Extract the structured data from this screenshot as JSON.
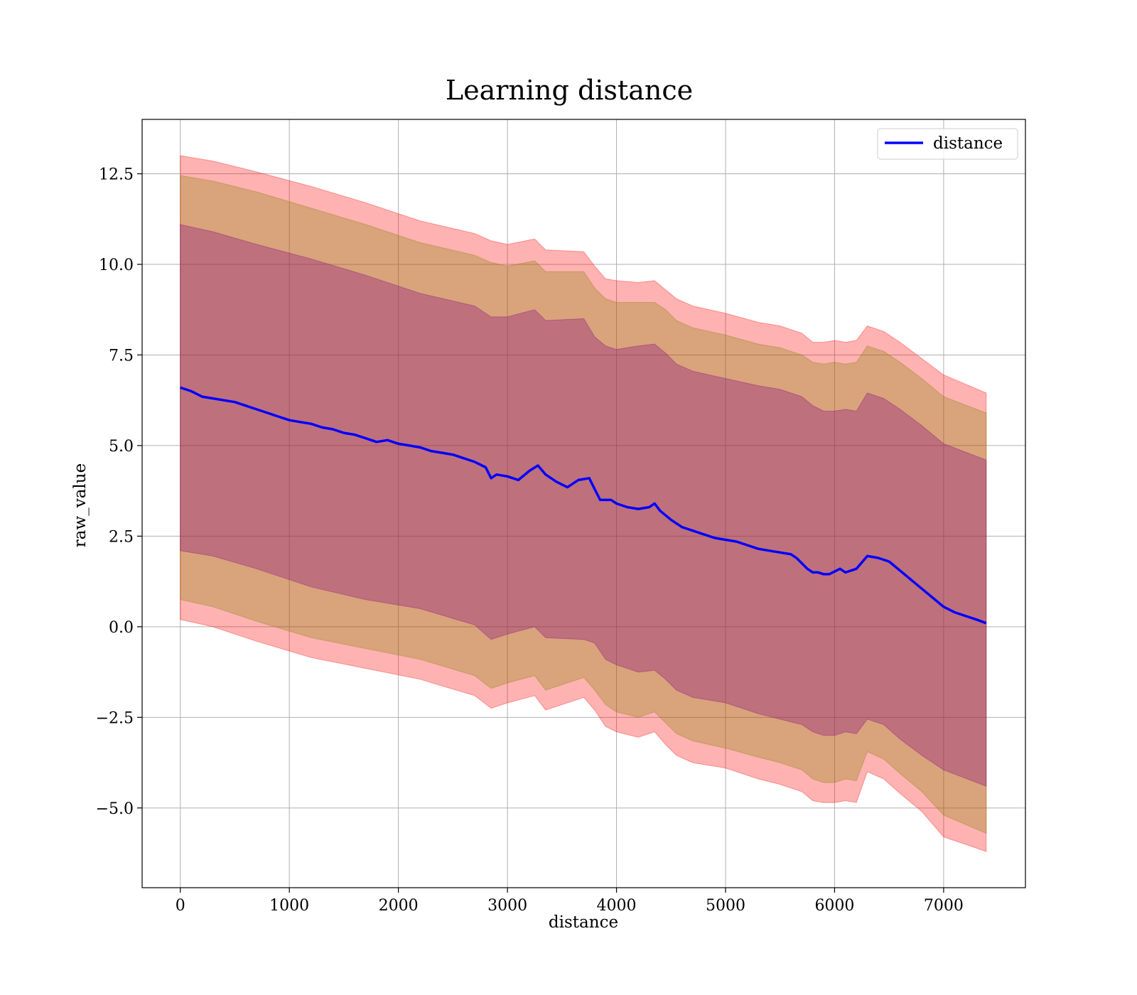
{
  "chart_data": {
    "type": "line",
    "title": "Learning distance",
    "xlabel": "distance",
    "ylabel": "raw_value",
    "xlim": [
      -350,
      7750
    ],
    "ylim": [
      -7.2,
      14.0
    ],
    "xticks": [
      0,
      1000,
      2000,
      3000,
      4000,
      5000,
      6000,
      7000
    ],
    "yticks": [
      -5.0,
      -2.5,
      0.0,
      2.5,
      5.0,
      7.5,
      10.0,
      12.5
    ],
    "xtick_labels": [
      "0",
      "1000",
      "2000",
      "3000",
      "4000",
      "5000",
      "6000",
      "7000"
    ],
    "ytick_labels": [
      "−5.0",
      "−2.5",
      "0.0",
      "2.5",
      "5.0",
      "7.5",
      "10.0",
      "12.5"
    ],
    "grid": true,
    "legend_position": "top-right",
    "series": [
      {
        "name": "distance",
        "color": "#0000ff",
        "x": [
          0,
          100,
          200,
          300,
          400,
          500,
          600,
          700,
          800,
          900,
          1000,
          1100,
          1200,
          1300,
          1400,
          1500,
          1600,
          1700,
          1800,
          1900,
          2000,
          2100,
          2200,
          2300,
          2400,
          2500,
          2600,
          2700,
          2800,
          2850,
          2900,
          3000,
          3100,
          3200,
          3280,
          3350,
          3450,
          3550,
          3650,
          3750,
          3800,
          3850,
          3950,
          4000,
          4100,
          4200,
          4300,
          4350,
          4400,
          4500,
          4600,
          4700,
          4800,
          4900,
          5000,
          5100,
          5200,
          5300,
          5400,
          5500,
          5600,
          5650,
          5700,
          5750,
          5800,
          5850,
          5900,
          5950,
          6050,
          6100,
          6200,
          6300,
          6400,
          6500,
          6600,
          6700,
          6800,
          6900,
          7000,
          7100,
          7200,
          7300,
          7390
        ],
        "y": [
          6.6,
          6.5,
          6.35,
          6.3,
          6.25,
          6.2,
          6.1,
          6.0,
          5.9,
          5.8,
          5.7,
          5.65,
          5.6,
          5.5,
          5.45,
          5.35,
          5.3,
          5.2,
          5.1,
          5.15,
          5.05,
          5.0,
          4.95,
          4.85,
          4.8,
          4.75,
          4.65,
          4.55,
          4.4,
          4.1,
          4.2,
          4.15,
          4.05,
          4.3,
          4.45,
          4.2,
          4.0,
          3.85,
          4.05,
          4.1,
          3.8,
          3.5,
          3.5,
          3.4,
          3.3,
          3.25,
          3.3,
          3.4,
          3.2,
          2.95,
          2.75,
          2.65,
          2.55,
          2.45,
          2.4,
          2.35,
          2.25,
          2.15,
          2.1,
          2.05,
          2.0,
          1.9,
          1.75,
          1.6,
          1.5,
          1.5,
          1.45,
          1.45,
          1.6,
          1.5,
          1.6,
          1.95,
          1.9,
          1.8,
          1.55,
          1.3,
          1.05,
          0.8,
          0.55,
          0.4,
          0.3,
          0.2,
          0.1
        ]
      }
    ],
    "bands": [
      {
        "color": "#ff0000",
        "opacity": 0.3,
        "x": [
          0,
          300,
          700,
          1200,
          1700,
          2200,
          2700,
          2850,
          3000,
          3250,
          3350,
          3700,
          3800,
          3900,
          4000,
          4200,
          4350,
          4450,
          4550,
          4700,
          5000,
          5300,
          5500,
          5700,
          5800,
          5900,
          6000,
          6100,
          6200,
          6300,
          6450,
          6600,
          6800,
          7000,
          7390
        ],
        "upper": [
          13.0,
          12.85,
          12.55,
          12.15,
          11.7,
          11.2,
          10.85,
          10.65,
          10.55,
          10.7,
          10.4,
          10.35,
          9.95,
          9.6,
          9.55,
          9.5,
          9.55,
          9.3,
          9.05,
          8.85,
          8.65,
          8.4,
          8.3,
          8.1,
          7.85,
          7.85,
          7.9,
          7.85,
          7.9,
          8.3,
          8.15,
          7.85,
          7.4,
          6.95,
          6.45
        ],
        "lower": [
          0.2,
          0.0,
          -0.4,
          -0.85,
          -1.15,
          -1.45,
          -1.9,
          -2.25,
          -2.1,
          -1.9,
          -2.3,
          -1.95,
          -2.3,
          -2.75,
          -2.9,
          -3.05,
          -2.9,
          -3.25,
          -3.55,
          -3.75,
          -3.9,
          -4.2,
          -4.35,
          -4.55,
          -4.8,
          -4.85,
          -4.85,
          -4.8,
          -4.85,
          -4.0,
          -4.2,
          -4.6,
          -5.1,
          -5.8,
          -6.2
        ]
      },
      {
        "color": "#808000",
        "opacity": 0.3,
        "x": [
          0,
          300,
          700,
          1200,
          1700,
          2200,
          2700,
          2850,
          3000,
          3250,
          3350,
          3700,
          3800,
          3900,
          4000,
          4200,
          4350,
          4450,
          4550,
          4700,
          5000,
          5300,
          5500,
          5700,
          5800,
          5900,
          6000,
          6100,
          6200,
          6300,
          6450,
          6600,
          6800,
          7000,
          7390
        ],
        "upper": [
          12.45,
          12.3,
          12.0,
          11.55,
          11.1,
          10.6,
          10.25,
          10.05,
          9.95,
          10.1,
          9.8,
          9.8,
          9.35,
          9.05,
          8.95,
          8.95,
          8.95,
          8.75,
          8.45,
          8.25,
          8.05,
          7.8,
          7.7,
          7.5,
          7.3,
          7.25,
          7.3,
          7.25,
          7.3,
          7.75,
          7.6,
          7.3,
          6.85,
          6.35,
          5.9
        ],
        "lower": [
          0.75,
          0.55,
          0.15,
          -0.3,
          -0.6,
          -0.9,
          -1.35,
          -1.7,
          -1.55,
          -1.35,
          -1.75,
          -1.4,
          -1.75,
          -2.15,
          -2.35,
          -2.5,
          -2.35,
          -2.65,
          -2.95,
          -3.15,
          -3.35,
          -3.6,
          -3.75,
          -3.95,
          -4.2,
          -4.3,
          -4.3,
          -4.2,
          -4.25,
          -3.45,
          -3.65,
          -4.05,
          -4.55,
          -5.2,
          -5.7
        ]
      },
      {
        "color": "#800080",
        "opacity": 0.3,
        "x": [
          0,
          300,
          700,
          1200,
          1700,
          2200,
          2700,
          2850,
          3000,
          3250,
          3350,
          3700,
          3800,
          3900,
          4000,
          4200,
          4350,
          4450,
          4550,
          4700,
          5000,
          5300,
          5500,
          5700,
          5800,
          5900,
          6000,
          6100,
          6200,
          6300,
          6450,
          6600,
          6800,
          7000,
          7390
        ],
        "upper": [
          11.1,
          10.9,
          10.55,
          10.15,
          9.7,
          9.2,
          8.85,
          8.55,
          8.55,
          8.75,
          8.45,
          8.5,
          8.0,
          7.75,
          7.65,
          7.75,
          7.8,
          7.55,
          7.25,
          7.05,
          6.85,
          6.65,
          6.55,
          6.35,
          6.1,
          5.95,
          5.95,
          6.0,
          5.95,
          6.45,
          6.3,
          6.0,
          5.55,
          5.05,
          4.6
        ],
        "lower": [
          2.1,
          1.95,
          1.6,
          1.1,
          0.75,
          0.5,
          0.05,
          -0.35,
          -0.2,
          -0.0,
          -0.3,
          -0.35,
          -0.45,
          -0.9,
          -1.05,
          -1.25,
          -1.2,
          -1.45,
          -1.75,
          -1.95,
          -2.1,
          -2.4,
          -2.55,
          -2.7,
          -2.9,
          -3.0,
          -3.0,
          -2.9,
          -2.95,
          -2.55,
          -2.7,
          -3.1,
          -3.55,
          -3.95,
          -4.4
        ]
      }
    ]
  }
}
